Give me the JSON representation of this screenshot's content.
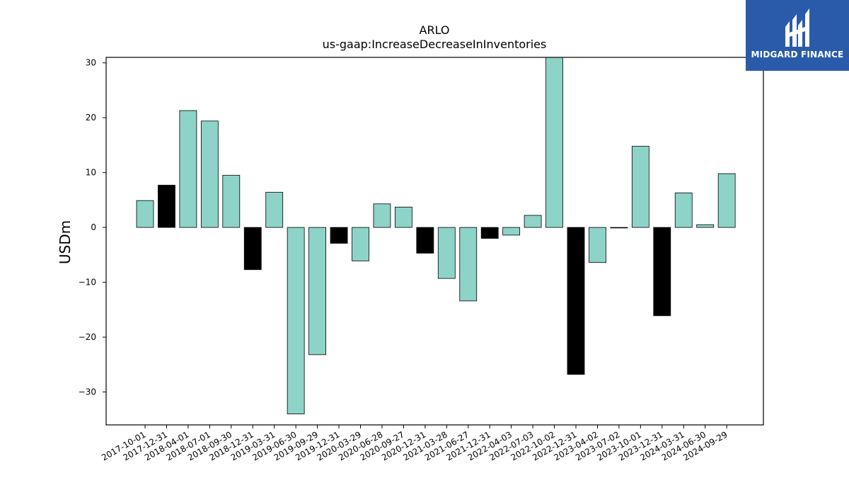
{
  "brand": {
    "name": "MIDGARD FINANCE",
    "logo_icon": "midgard-logo-icon",
    "color": "#2a5bab"
  },
  "chart_data": {
    "type": "bar",
    "title": "ARLO",
    "subtitle": "us-gaap:IncreaseDecreaseInInventories",
    "xlabel": "",
    "ylabel": "USDm",
    "ylim": [
      -36,
      31
    ],
    "yticks": [
      -30,
      -20,
      -10,
      0,
      10,
      20,
      30
    ],
    "ytick_labels": [
      "−30",
      "−20",
      "−10",
      "0",
      "10",
      "20",
      "30"
    ],
    "grid": false,
    "colors": {
      "default": "#8dd3c7",
      "highlight": "#000000",
      "edge": "#000000"
    },
    "categories": [
      "2017-10-01",
      "2017-12-31",
      "2018-04-01",
      "2018-07-01",
      "2018-09-30",
      "2018-12-31",
      "2019-03-31",
      "2019-06-30",
      "2019-09-29",
      "2019-12-31",
      "2020-03-29",
      "2020-06-28",
      "2020-09-27",
      "2020-12-31",
      "2021-03-28",
      "2021-06-27",
      "2021-12-31",
      "2022-04-03",
      "2022-07-03",
      "2022-10-02",
      "2022-12-31",
      "2023-04-02",
      "2023-07-02",
      "2023-10-01",
      "2023-12-31",
      "2024-03-31",
      "2024-06-30",
      "2024-09-29"
    ],
    "values": [
      4.9,
      7.7,
      21.3,
      19.4,
      9.5,
      -7.7,
      6.4,
      -34.0,
      -23.2,
      -2.9,
      -6.1,
      4.3,
      3.7,
      -4.7,
      -9.3,
      -13.4,
      -2.0,
      -1.4,
      2.2,
      31.0,
      -26.8,
      -6.4,
      -0.1,
      14.8,
      -16.1,
      6.3,
      0.5,
      9.8
    ],
    "highlighted": [
      false,
      true,
      false,
      false,
      false,
      true,
      false,
      false,
      false,
      true,
      false,
      false,
      false,
      true,
      false,
      false,
      true,
      false,
      false,
      false,
      true,
      false,
      false,
      false,
      true,
      false,
      false,
      false
    ]
  }
}
